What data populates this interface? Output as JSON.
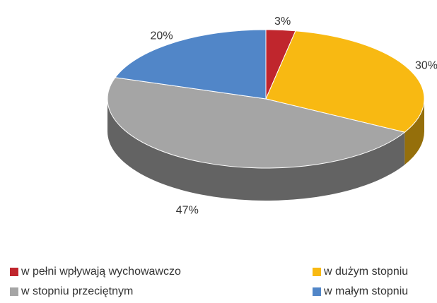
{
  "chart_data": {
    "type": "pie",
    "categories": [
      "w pełni wpływają wychowawczo",
      "w dużym stopniu",
      "w stopniu przeciętnym",
      "w małym stopniu"
    ],
    "values": [
      3,
      30,
      47,
      20
    ],
    "value_labels": [
      "3%",
      "30%",
      "47%",
      "20%"
    ],
    "colors": [
      "#c0262d",
      "#f8b912",
      "#a5a5a5",
      "#5186c8"
    ],
    "legend": "bottom"
  }
}
